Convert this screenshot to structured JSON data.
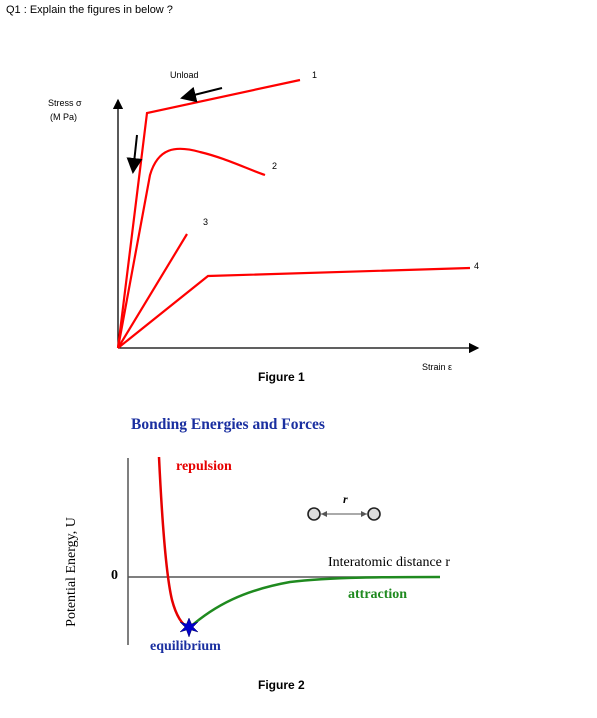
{
  "question": "Q1 : Explain the figures in below ?",
  "figure1": {
    "caption": "Figure 1",
    "y_axis_label_line1": "Stress σ",
    "y_axis_label_line2": "(M Pa)",
    "x_axis_label": "Strain ε",
    "unload_label": "Unload",
    "curve_labels": [
      "1",
      "2",
      "3",
      "4"
    ],
    "curve_color": "#ff0000"
  },
  "figure2": {
    "caption": "Figure 2",
    "title": "Bonding Energies and Forces",
    "y_axis_label": "Potential Energy, U",
    "zero_label": "0",
    "repulsion_label": "repulsion",
    "attraction_label": "attraction",
    "equilibrium_label": "equilibrium",
    "distance_label": "Interatomic distance r",
    "r_label": "r",
    "title_color": "#1a2fa0",
    "repulsion_color": "#e60000",
    "attraction_color": "#1f8a1f",
    "equilibrium_color": "#0000cc"
  }
}
